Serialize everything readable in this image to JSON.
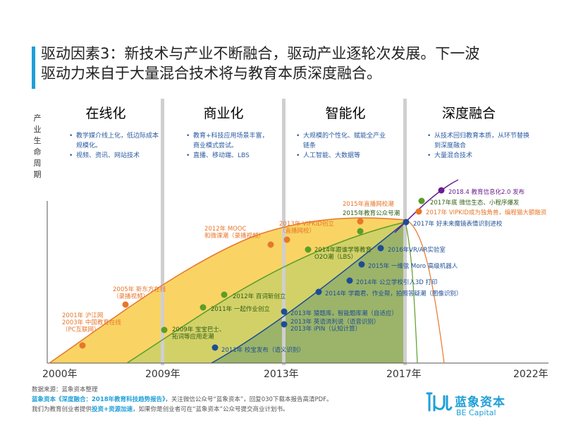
{
  "title": {
    "line1": "驱动因素3：新技术与产业不断融合，驱动产业逐轮次发展。下一波",
    "line2": "驱动力来自于大量混合技术将与教育本质深度融合。"
  },
  "y_axis_label": "产业生命周期",
  "years": [
    "2000年",
    "2009年",
    "2013年",
    "2017年",
    "2022年"
  ],
  "colors": {
    "orange": "#e8762b",
    "green": "#5a9e28",
    "blue": "#1e4d95",
    "purple": "#6a1d8e",
    "text_blue": "#2a5aa0"
  },
  "phases": [
    {
      "name": "在线化",
      "color": "#e8762b",
      "bullets": [
        "教学媒介线上化，低边际成本规模化。",
        "视频、资讯、网站技术"
      ]
    },
    {
      "name": "商业化",
      "color": "#5a9e28",
      "bullets": [
        "教育+科技应用场景丰富，商业模式尝试。",
        "直播、移动端、LBS"
      ]
    },
    {
      "name": "智能化",
      "color": "#1e4d95",
      "bullets": [
        "大规模的个性化、赋能全产业链条",
        "人工智能、大数据等"
      ]
    },
    {
      "name": "深度融合",
      "color": "#6a1d8e",
      "bullets": [
        "从技术回归教育本质，从环节替换到深度融合",
        "大量混合技术"
      ]
    }
  ],
  "events": [
    {
      "text": "2001年 沪江网\n2003年 中国教育在线\n（PC互联网）",
      "color": "#e8762b",
      "text_color": "#e8762b"
    },
    {
      "text": "2005年 新东方在线\n（录播视频）",
      "color": "#e8762b",
      "text_color": "#e8762b"
    },
    {
      "text": "2012年 MOOC\n和微课潮（录播视频）",
      "color": "#e8762b",
      "text_color": "#e8762b"
    },
    {
      "text": "2013年 VIPKID创立\n（直播网校）",
      "color": "#e8762b",
      "text_color": "#e8762b"
    },
    {
      "text": "2015年直播网校潮",
      "color": "#e8762b",
      "text_color": "#e8762b"
    },
    {
      "text": "2017年 VIPKID成为独角兽，编程猫大额融资",
      "color": "#e8762b",
      "text_color": "#e8762b"
    },
    {
      "text": "2009年 宝宝巴士、\n拓词等应用走潮",
      "color": "#5a9e28",
      "text_color": "#2f5f14"
    },
    {
      "text": "2011年 一起作业创立",
      "color": "#5a9e28",
      "text_color": "#2f5f14"
    },
    {
      "text": "2012年 百词斩创立",
      "color": "#5a9e28",
      "text_color": "#2f5f14"
    },
    {
      "text": "2014年跟谁学等教育\nO2O潮（LBS）",
      "color": "#5a9e28",
      "text_color": "#2f5f14"
    },
    {
      "text": "2015年教育公众号潮",
      "color": "#5a9e28",
      "text_color": "#2f5f14"
    },
    {
      "text": "2017年底 微信生态、小程序爆发",
      "color": "#5a9e28",
      "text_color": "#2f5f14"
    },
    {
      "text": "2011年 校宝发布（语义识别）",
      "color": "#1e4d95",
      "text_color": "#1e4d95"
    },
    {
      "text": "2013年 猿题库，智能题库潮（自适应）",
      "color": "#1e4d95",
      "text_color": "#1e4d95"
    },
    {
      "text": "2013年 英语流利说（语音识别）\n2013年 iPIN（认知计算）",
      "color": "#1e4d95",
      "text_color": "#1e4d95"
    },
    {
      "text": "2014年 学霸君、作业帮，拍照答疑潮（图像识别）",
      "color": "#1e4d95",
      "text_color": "#1e4d95"
    },
    {
      "text": "2014年 公立学校引入3D 打印",
      "color": "#1e4d95",
      "text_color": "#1e4d95"
    },
    {
      "text": "2015年 一维弦 Moro 高级机器人",
      "color": "#1e4d95",
      "text_color": "#1e4d95"
    },
    {
      "text": "2016年VR/AR实验室",
      "color": "#1e4d95",
      "text_color": "#1e4d95"
    },
    {
      "text": "2017年 好未来魔镜表情识别进校",
      "color": "#1e4d95",
      "text_color": "#1e4d95"
    },
    {
      "text": "2018.4 教育信息化2.0 发布",
      "color": "#6a1d8e",
      "text_color": "#6a1d8e"
    }
  ],
  "footer": {
    "source": "数据来源：蓝象资本整理",
    "report_title": "蓝象资本《深度融合：2018年教育科技趋势报告》",
    "report_rest": "，关注微信公众号“蓝象资本”，回复030下载本报告高清PDF。",
    "invest_pre": "我们为教育创业者提供",
    "invest_bold": "投资+资源加速",
    "invest_post": "，如果你是创业者可在“蓝象资本”公众号提交商业计划书。"
  },
  "logo": {
    "cn": "蓝象资本",
    "en": "BE Capital"
  }
}
